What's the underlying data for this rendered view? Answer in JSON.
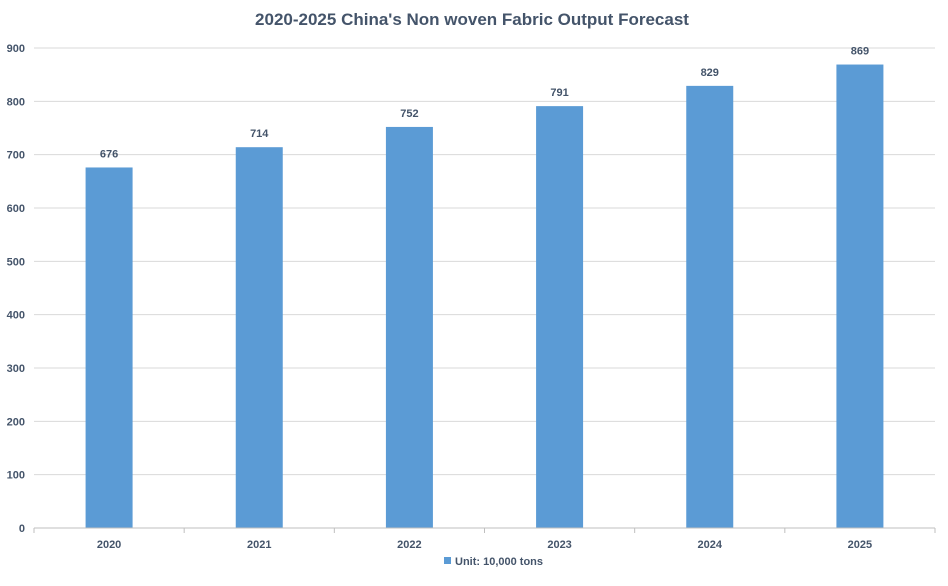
{
  "chart_data": {
    "type": "bar",
    "title": "2020-2025 China's Non woven Fabric Output Forecast",
    "categories": [
      "2020",
      "2021",
      "2022",
      "2023",
      "2024",
      "2025"
    ],
    "series": [
      {
        "name": "Unit: 10,000 tons",
        "values": [
          676,
          714,
          752,
          791,
          829,
          869
        ]
      }
    ],
    "data_labels": [
      "676",
      "714",
      "752",
      "791",
      "829",
      "869"
    ],
    "y_ticks": [
      "0",
      "100",
      "200",
      "300",
      "400",
      "500",
      "600",
      "700",
      "800",
      "900"
    ],
    "ylim": [
      0,
      900
    ],
    "grid": true,
    "legend_position": "bottom"
  },
  "colors": {
    "bar": "#5b9bd5",
    "text": "#44546a",
    "grid": "#d9d9d9",
    "axis": "#bfbfbf"
  }
}
